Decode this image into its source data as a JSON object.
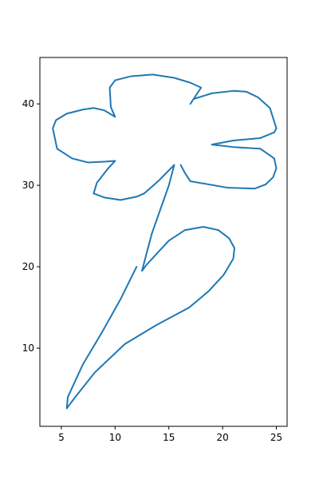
{
  "chart_data": {
    "type": "line",
    "title": "",
    "xlabel": "",
    "ylabel": "",
    "xlim": [
      3,
      26
    ],
    "ylim": [
      0.4,
      45.7
    ],
    "x_ticks": [
      5,
      10,
      15,
      20,
      25
    ],
    "y_ticks": [
      10,
      20,
      30,
      40
    ],
    "grid": false,
    "legend": "none",
    "series": [
      {
        "color": "#1f77b4",
        "x": [
          12.0,
          10.5,
          8.8,
          7.0,
          5.6,
          5.5,
          6.3,
          8.1,
          10.9,
          13.8,
          16.9,
          18.7,
          20.1,
          21.0,
          21.1,
          20.6,
          19.6,
          18.2,
          16.5,
          15.0,
          13.8,
          12.9,
          12.5,
          12.8,
          13.4,
          14.2,
          15.0,
          15.5
        ],
        "y": [
          20.0,
          16.0,
          12.0,
          8.0,
          4.0,
          2.6,
          4.0,
          7.0,
          10.5,
          12.8,
          15.0,
          17.0,
          19.0,
          21.0,
          22.3,
          23.5,
          24.5,
          24.9,
          24.5,
          23.2,
          21.5,
          20.2,
          19.5,
          21.0,
          24.0,
          27.0,
          30.0,
          32.5
        ],
        "closed": false
      },
      {
        "color": "#1f77b4",
        "x": [
          15.5,
          14.0,
          12.7,
          12.0,
          10.5,
          9.0,
          8.0,
          8.3,
          9.3,
          10.0,
          9.0,
          7.5,
          6.0,
          4.6,
          4.2,
          4.5,
          5.5,
          7.0,
          8.0,
          9.0,
          10.0,
          9.6,
          9.5,
          10.0,
          11.5,
          13.5,
          15.5,
          17.0,
          18.0,
          17.0,
          17.3,
          19.0,
          21.0,
          22.2,
          23.3,
          24.4,
          25.0,
          24.8,
          23.5,
          21.0,
          19.0,
          21.0,
          23.5,
          24.8,
          25.0,
          24.7,
          24.0,
          23.0,
          20.5,
          17.0,
          16.5,
          16.1
        ],
        "y": [
          32.5,
          30.5,
          29.0,
          28.6,
          28.2,
          28.5,
          29.0,
          30.3,
          32.0,
          33.0,
          32.9,
          32.8,
          33.3,
          34.5,
          37.0,
          38.0,
          38.8,
          39.3,
          39.5,
          39.2,
          38.4,
          39.6,
          42.0,
          42.9,
          43.4,
          43.6,
          43.2,
          42.6,
          42.0,
          40.0,
          40.6,
          41.3,
          41.6,
          41.5,
          40.8,
          39.5,
          37.0,
          36.5,
          35.8,
          35.5,
          35.0,
          34.7,
          34.5,
          33.3,
          32.1,
          31.0,
          30.1,
          29.6,
          29.7,
          30.5,
          31.5,
          32.5
        ],
        "closed": false
      }
    ]
  }
}
